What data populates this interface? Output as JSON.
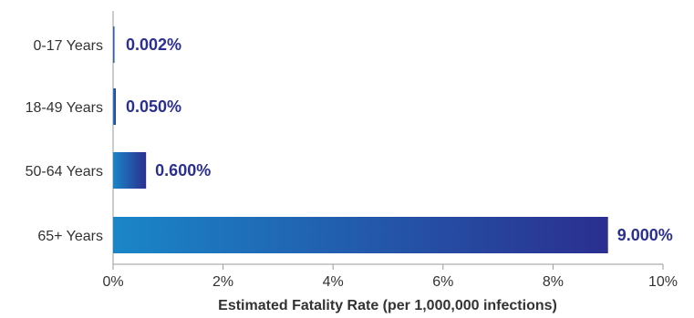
{
  "chart_data": {
    "type": "bar",
    "orientation": "horizontal",
    "categories": [
      "0-17 Years",
      "18-49 Years",
      "50-64 Years",
      "65+ Years"
    ],
    "values": [
      0.002,
      0.05,
      0.6,
      9.0
    ],
    "data_labels": [
      "0.002%",
      "0.050%",
      "0.600%",
      "9.000%"
    ],
    "xlabel": "Estimated Fatality Rate (per 1,000,000 infections)",
    "ylabel": "",
    "xlim": [
      0,
      10
    ],
    "xticks": [
      0,
      2,
      4,
      6,
      8,
      10
    ],
    "xtick_labels": [
      "0%",
      "2%",
      "4%",
      "6%",
      "8%",
      "10%"
    ],
    "grid": false,
    "colors": {
      "bar_start": "#1a86c8",
      "bar_end": "#2b2f8f",
      "label": "#2b2f8f",
      "text": "#333333",
      "axis": "#9a9a9a"
    }
  }
}
